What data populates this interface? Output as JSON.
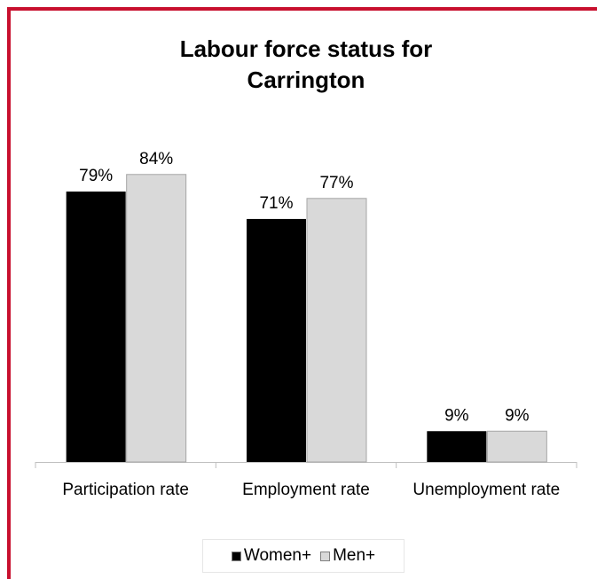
{
  "chart_data": {
    "type": "bar",
    "title": "Labour force status for Carrington",
    "categories": [
      "Participation rate",
      "Employment rate",
      "Unemployment rate"
    ],
    "series": [
      {
        "name": "Women+",
        "color": "#000000",
        "values": [
          79,
          71,
          9
        ],
        "value_labels": [
          "79%",
          "71%",
          "9%"
        ]
      },
      {
        "name": "Men+",
        "color": "#d9d9d9",
        "values": [
          84,
          77,
          9
        ],
        "value_labels": [
          "84%",
          "77%",
          "9%"
        ]
      }
    ],
    "ylim": [
      0,
      100
    ],
    "legend": "bottom"
  }
}
